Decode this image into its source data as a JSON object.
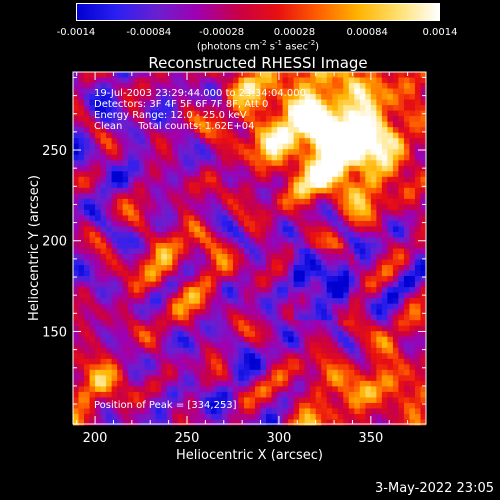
{
  "colorbar": {
    "tick_labels": [
      "-0.0014",
      "-0.00084",
      "-0.00028",
      "0.00028",
      "0.00084",
      "0.0014"
    ],
    "min": -0.0014,
    "max": 0.0014,
    "units": "(photons cm-2 s-1 asec-2)",
    "colors": [
      "#0000d0",
      "#2c20f0",
      "#6a1fd0",
      "#a000b0",
      "#c80048",
      "#e81010",
      "#ff6000",
      "#ffb400",
      "#ffe070",
      "#ffffff"
    ]
  },
  "chart_data": {
    "type": "heatmap",
    "title": "Reconstructed RHESSI Image",
    "xlabel": "Heliocentric X (arcsec)",
    "ylabel": "Heliocentric Y (arcsec)",
    "xlim": [
      188,
      380
    ],
    "ylim": [
      99,
      293
    ],
    "xticks": [
      200,
      250,
      300,
      350
    ],
    "yticks": [
      150,
      200,
      250
    ],
    "info_lines": [
      "19-Jul-2003 23:29:44.000 to 23:34:04.000",
      "Detectors: 3F 4F 5F 6F 7F 8F, Att 0",
      "Energy Range: 12.0 - 25.0 keV",
      "Clean     Total counts: 1.62E+04"
    ],
    "peak_label": "Position of Peak = [334,253]",
    "peak_position": [
      334,
      253
    ],
    "grid": false
  },
  "footer": {
    "stamp": "3-May-2022 23:05"
  }
}
